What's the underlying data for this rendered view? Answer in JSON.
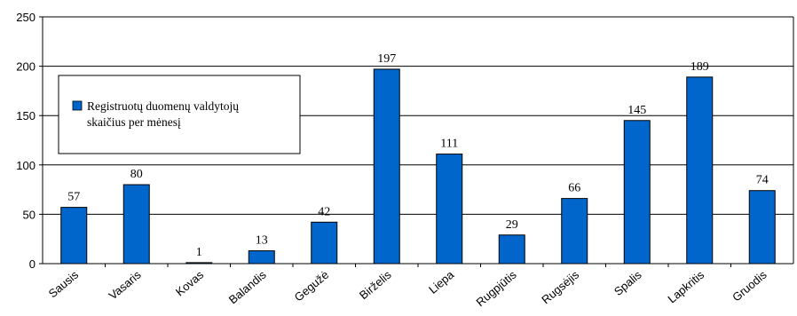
{
  "chart_data": {
    "type": "bar",
    "categories": [
      "Sausis",
      "Vasaris",
      "Kovas",
      "Balandis",
      "Gegužė",
      "Birželis",
      "Liepa",
      "Rugpjūtis",
      "Rugsėjis",
      "Spalis",
      "Lapkritis",
      "Gruodis"
    ],
    "series": [
      {
        "name": "Registruotų duomenų valdytojų skaičius per mėnesį",
        "values": [
          57,
          80,
          1,
          13,
          42,
          197,
          111,
          29,
          66,
          145,
          189,
          74
        ],
        "color": "#0066cc"
      }
    ],
    "legend_lines": [
      "Registruotų duomenų valdytojų",
      "skaičius per mėnesį"
    ],
    "ylim": [
      0,
      250
    ],
    "yticks": [
      0,
      50,
      100,
      150,
      200,
      250
    ],
    "grid": true,
    "legend_position": "left"
  }
}
